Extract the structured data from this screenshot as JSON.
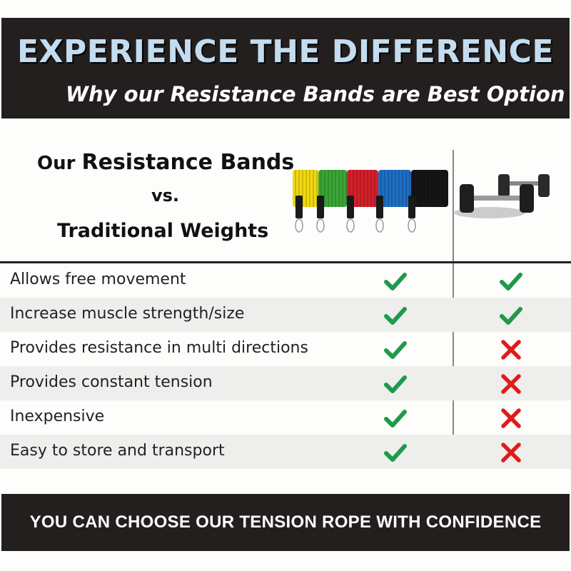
{
  "header": {
    "title": "EXPERIENCE THE DIFFERENCE",
    "subtitle": "Why our Resistance Bands are Best Option"
  },
  "comparison": {
    "our": "Our",
    "product": "Resistance Bands",
    "vs": "vs.",
    "other": "Traditional Weights"
  },
  "band_colors": [
    "#f2d90f",
    "#3aa637",
    "#d3202a",
    "#1f6ec4",
    "#151515"
  ],
  "colors": {
    "check": "#1e9a4a",
    "cross": "#e01b1b"
  },
  "rows": [
    {
      "feature": "Allows free movement",
      "bands": "check",
      "weights": "check"
    },
    {
      "feature": "Increase muscle strength/size",
      "bands": "check",
      "weights": "check"
    },
    {
      "feature": "Provides resistance in multi directions",
      "bands": "check",
      "weights": "cross"
    },
    {
      "feature": "Provides constant tension",
      "bands": "check",
      "weights": "cross"
    },
    {
      "feature": "Inexpensive",
      "bands": "check",
      "weights": "cross"
    },
    {
      "feature": "Easy to store and transport",
      "bands": "check",
      "weights": "cross"
    }
  ],
  "footer": {
    "text": "YOU CAN CHOOSE OUR TENSION ROPE WITH CONFIDENCE"
  }
}
